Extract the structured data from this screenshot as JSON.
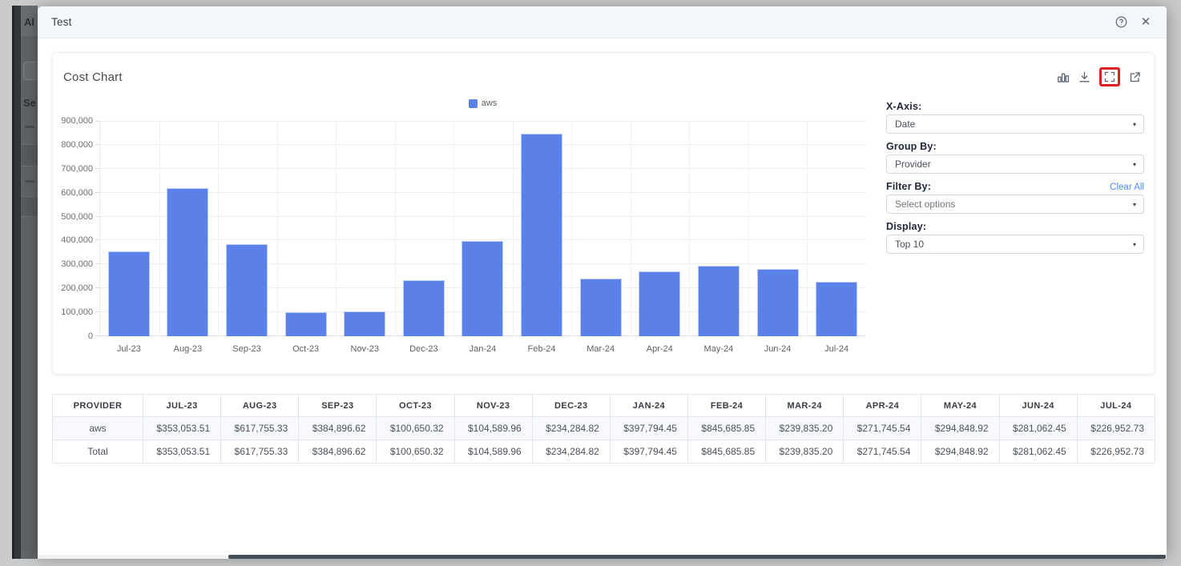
{
  "colors": {
    "bar": "#5b80e8",
    "link": "#4f8cf7",
    "annotation": "#dd1f1f",
    "row_highlight": "#f7f9fc"
  },
  "background_app": {
    "logo_fragment": "Al",
    "section_fragment": "Se"
  },
  "modal": {
    "title": "Test",
    "header_icons": [
      "help-icon",
      "close-icon"
    ]
  },
  "card": {
    "title": "Cost Chart",
    "toolbar_icons": [
      "bar-chart-icon",
      "download-icon",
      "fullscreen-icon",
      "external-link-icon"
    ],
    "annotated_icon": "fullscreen-icon"
  },
  "controls": {
    "x_axis": {
      "label": "X-Axis:",
      "value": "Date"
    },
    "group_by": {
      "label": "Group By:",
      "value": "Provider"
    },
    "filter_by": {
      "label": "Filter By:",
      "placeholder": "Select options",
      "clear_all": "Clear All"
    },
    "display": {
      "label": "Display:",
      "value": "Top 10"
    }
  },
  "chart_data": {
    "type": "bar",
    "title": "",
    "legend": [
      "aws"
    ],
    "legend_position": "top",
    "categories": [
      "Jul-23",
      "Aug-23",
      "Sep-23",
      "Oct-23",
      "Nov-23",
      "Dec-23",
      "Jan-24",
      "Feb-24",
      "Mar-24",
      "Apr-24",
      "May-24",
      "Jun-24",
      "Jul-24"
    ],
    "series": [
      {
        "name": "aws",
        "values": [
          353053.51,
          617755.33,
          384896.62,
          100650.32,
          104589.96,
          234284.82,
          397794.45,
          845685.85,
          239835.2,
          271745.54,
          294848.92,
          281062.45,
          226952.73
        ]
      }
    ],
    "ylim": [
      0,
      900000
    ],
    "ytick_interval": 100000,
    "grid": true
  },
  "table": {
    "columns": [
      "PROVIDER",
      "JUL-23",
      "AUG-23",
      "SEP-23",
      "OCT-23",
      "NOV-23",
      "DEC-23",
      "JAN-24",
      "FEB-24",
      "MAR-24",
      "APR-24",
      "MAY-24",
      "JUN-24",
      "JUL-24"
    ],
    "rows": [
      {
        "provider": "aws",
        "values": [
          "$353,053.51",
          "$617,755.33",
          "$384,896.62",
          "$100,650.32",
          "$104,589.96",
          "$234,284.82",
          "$397,794.45",
          "$845,685.85",
          "$239,835.20",
          "$271,745.54",
          "$294,848.92",
          "$281,062.45",
          "$226,952.73"
        ]
      },
      {
        "provider": "Total",
        "values": [
          "$353,053.51",
          "$617,755.33",
          "$384,896.62",
          "$100,650.32",
          "$104,589.96",
          "$234,284.82",
          "$397,794.45",
          "$845,685.85",
          "$239,835.20",
          "$271,745.54",
          "$294,848.92",
          "$281,062.45",
          "$226,952.73"
        ]
      }
    ]
  }
}
